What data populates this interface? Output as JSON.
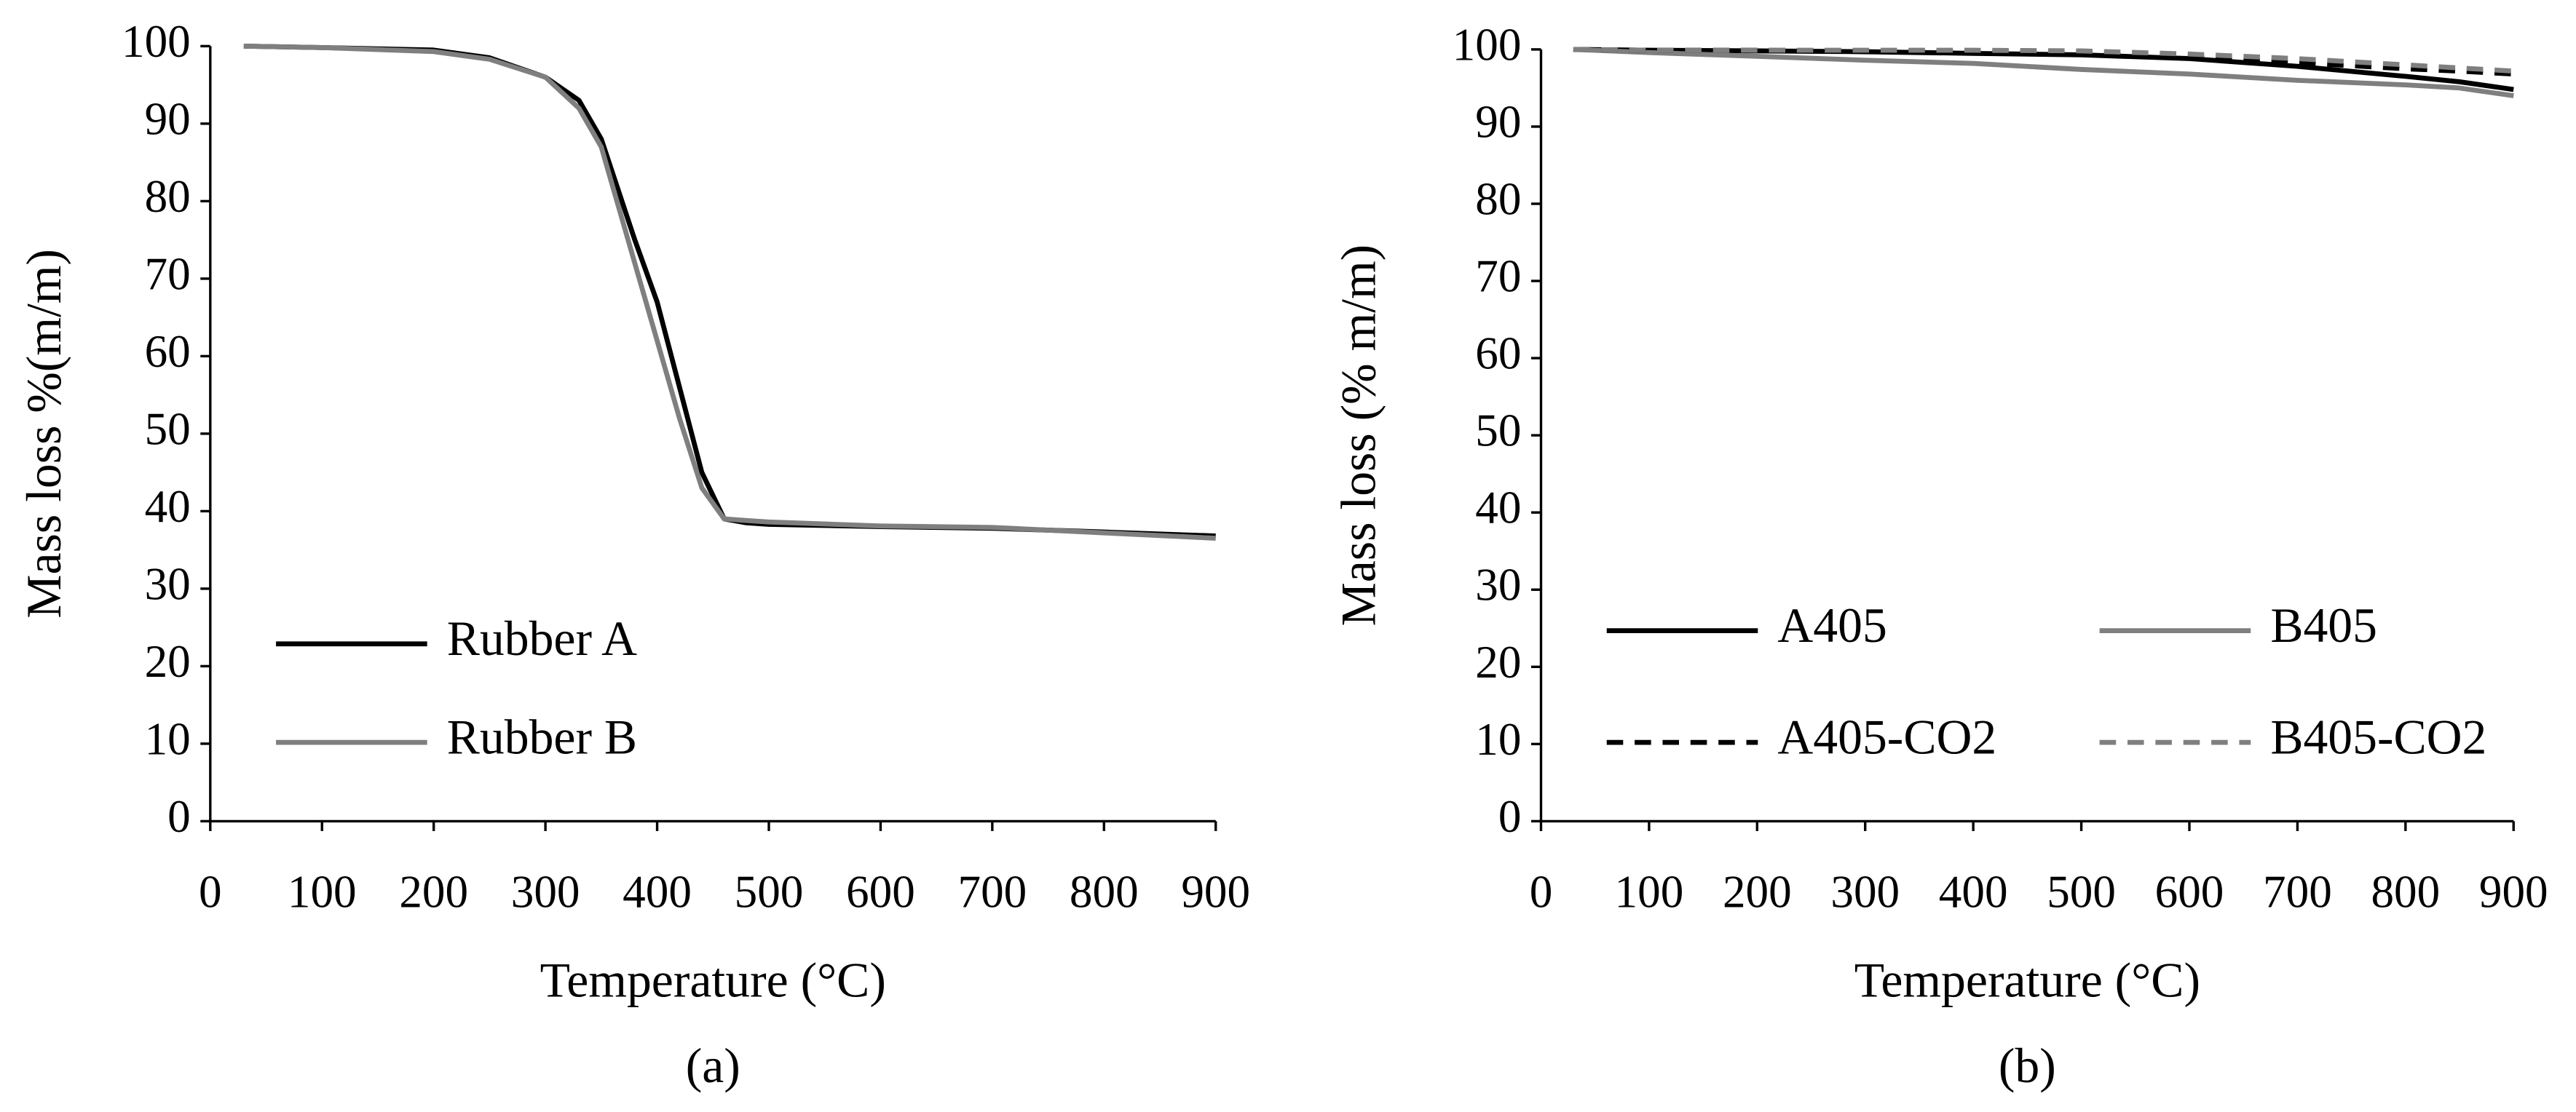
{
  "chart_data": [
    {
      "type": "line",
      "caption": "(a)",
      "x_label": "Temperature (°C)",
      "y_label": "Mass loss %(m/m)",
      "xlim": [
        0,
        900
      ],
      "xticks": [
        0,
        100,
        200,
        300,
        400,
        500,
        600,
        700,
        800,
        900
      ],
      "ylim": [
        0,
        100
      ],
      "yticks": [
        0,
        10,
        20,
        30,
        40,
        50,
        60,
        70,
        80,
        90,
        100
      ],
      "grid": false,
      "legend": "lower left",
      "legend_columns": 1,
      "x": [
        30,
        100,
        200,
        250,
        300,
        330,
        350,
        380,
        400,
        420,
        440,
        460,
        480,
        500,
        600,
        700,
        800,
        900
      ],
      "series": [
        {
          "name": "Rubber A",
          "color": "#000000",
          "dashed": false,
          "values": [
            100,
            99.8,
            99.5,
            98.5,
            96,
            93,
            88,
            75,
            67,
            56,
            45,
            39,
            38.5,
            38.3,
            38,
            37.8,
            37.3,
            36.8
          ]
        },
        {
          "name": "Rubber B",
          "color": "#7f7f7f",
          "dashed": false,
          "values": [
            100,
            99.8,
            99.3,
            98.3,
            96,
            92,
            87,
            72,
            62,
            52,
            43,
            39,
            38.8,
            38.6,
            38.1,
            37.9,
            37.2,
            36.5
          ]
        }
      ]
    },
    {
      "type": "line",
      "caption": "(b)",
      "x_label": "Temperature (°C)",
      "y_label": "Mass loss (% m/m)",
      "xlim": [
        0,
        900
      ],
      "xticks": [
        0,
        100,
        200,
        300,
        400,
        500,
        600,
        700,
        800,
        900
      ],
      "ylim": [
        0,
        100
      ],
      "yticks": [
        0,
        10,
        20,
        30,
        40,
        50,
        60,
        70,
        80,
        90,
        100
      ],
      "grid": false,
      "legend": "lower left",
      "legend_columns": 2,
      "x": [
        30,
        100,
        200,
        300,
        400,
        500,
        600,
        700,
        800,
        850,
        900
      ],
      "series": [
        {
          "name": "A405",
          "color": "#000000",
          "dashed": false,
          "values": [
            100,
            99.9,
            99.8,
            99.7,
            99.5,
            99.3,
            98.8,
            97.8,
            96.5,
            95.8,
            94.8
          ]
        },
        {
          "name": "B405",
          "color": "#7f7f7f",
          "dashed": false,
          "values": [
            100,
            99.6,
            99.1,
            98.6,
            98.2,
            97.4,
            96.8,
            96,
            95.4,
            95,
            94
          ]
        },
        {
          "name": "A405-CO2",
          "color": "#000000",
          "dashed": true,
          "values": [
            100,
            99.9,
            99.9,
            99.8,
            99.7,
            99.5,
            99,
            98.3,
            97.5,
            97.2,
            96.8
          ]
        },
        {
          "name": "B405-CO2",
          "color": "#7f7f7f",
          "dashed": true,
          "values": [
            100,
            99.9,
            99.9,
            99.9,
            99.9,
            99.8,
            99.4,
            98.8,
            98,
            97.6,
            97.2
          ]
        }
      ]
    }
  ]
}
